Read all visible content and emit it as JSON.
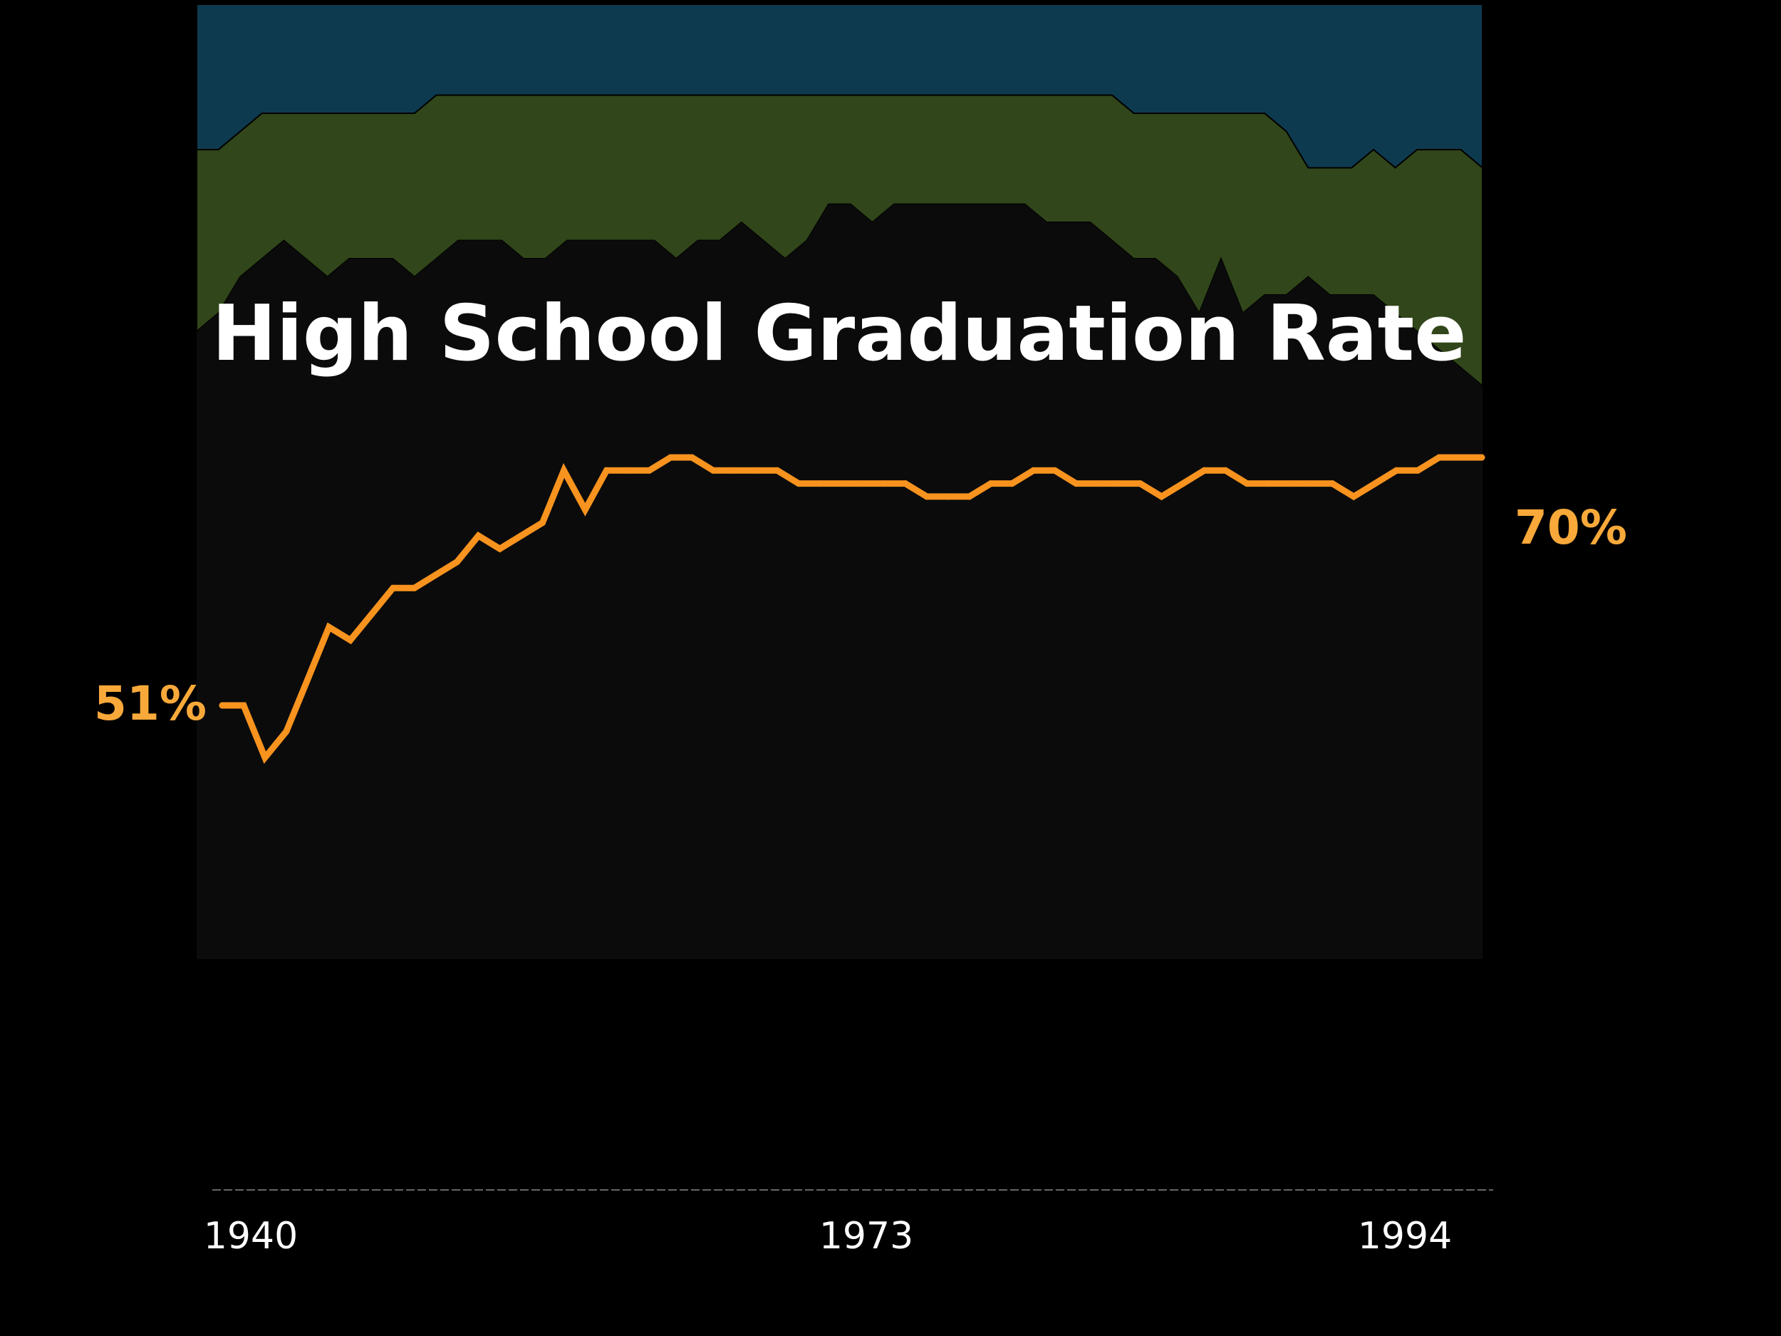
{
  "chart_data": {
    "type": "line",
    "title": "High School Graduation Rate",
    "xlabel": "",
    "ylabel": "",
    "xlim": [
      1940,
      1999
    ],
    "ylim": [
      40,
      80
    ],
    "x_ticks": [
      "1940",
      "1973",
      "1994"
    ],
    "start_label": "51%",
    "end_label": "70%",
    "grid": false,
    "legend": "none",
    "colors": {
      "background": "#000000",
      "panel": "#0b0b0b",
      "line": "#f7931e",
      "label": "#f8a93a",
      "title": "#ffffff",
      "band_top": "#0e3a4f",
      "band_middle": "#31461a",
      "axis_dash": "#666666",
      "tick_text": "#ffffff"
    },
    "series": [
      {
        "x": [
          1940,
          1941,
          1942,
          1943,
          1944,
          1945,
          1946,
          1947,
          1948,
          1949,
          1950,
          1951,
          1952,
          1953,
          1954,
          1955,
          1956,
          1957,
          1958,
          1959,
          1960,
          1961,
          1962,
          1963,
          1964,
          1965,
          1966,
          1967,
          1968,
          1969,
          1970,
          1971,
          1972,
          1973,
          1974,
          1975,
          1976,
          1977,
          1978,
          1979,
          1980,
          1981,
          1982,
          1983,
          1984,
          1985,
          1986,
          1987,
          1988,
          1989,
          1990,
          1991,
          1992,
          1993,
          1994,
          1995,
          1996,
          1997,
          1998,
          1999
        ],
        "values": [
          51,
          51,
          47,
          49,
          53,
          57,
          56,
          58,
          60,
          60,
          61,
          62,
          64,
          63,
          64,
          65,
          69,
          66,
          69,
          69,
          69,
          70,
          70,
          69,
          69,
          69,
          69,
          68,
          68,
          68,
          68,
          68,
          68,
          67,
          67,
          67,
          68,
          68,
          69,
          69,
          68,
          68,
          68,
          68,
          67,
          68,
          69,
          69,
          68,
          68,
          68,
          68,
          68,
          67,
          68,
          69,
          69,
          70,
          70,
          70
        ]
      }
    ],
    "upper_band": [
      {
        "x": 1940,
        "values": [
          92,
          92,
          93,
          94,
          94,
          94,
          94,
          94,
          94,
          94,
          94,
          95,
          95,
          95,
          95,
          95,
          95,
          95,
          95,
          95,
          95,
          95,
          95,
          95,
          95,
          95,
          95,
          95,
          95,
          95,
          95,
          95,
          95,
          95,
          95,
          95,
          95,
          95,
          95,
          95,
          95,
          95,
          95,
          94,
          94,
          94,
          94,
          94,
          94,
          94,
          93,
          91,
          91,
          91,
          92,
          91,
          92,
          92,
          92,
          91
        ]
      },
      {
        "x": 1940,
        "values": [
          82,
          83,
          85,
          86,
          87,
          86,
          85,
          86,
          86,
          86,
          85,
          86,
          87,
          87,
          87,
          86,
          86,
          87,
          87,
          87,
          87,
          87,
          86,
          87,
          87,
          88,
          87,
          86,
          87,
          89,
          89,
          88,
          89,
          89,
          89,
          89,
          89,
          89,
          89,
          88,
          88,
          88,
          87,
          86,
          86,
          85,
          83,
          86,
          83,
          84,
          84,
          85,
          84,
          84,
          84,
          83,
          82,
          81,
          80,
          79
        ]
      }
    ]
  }
}
